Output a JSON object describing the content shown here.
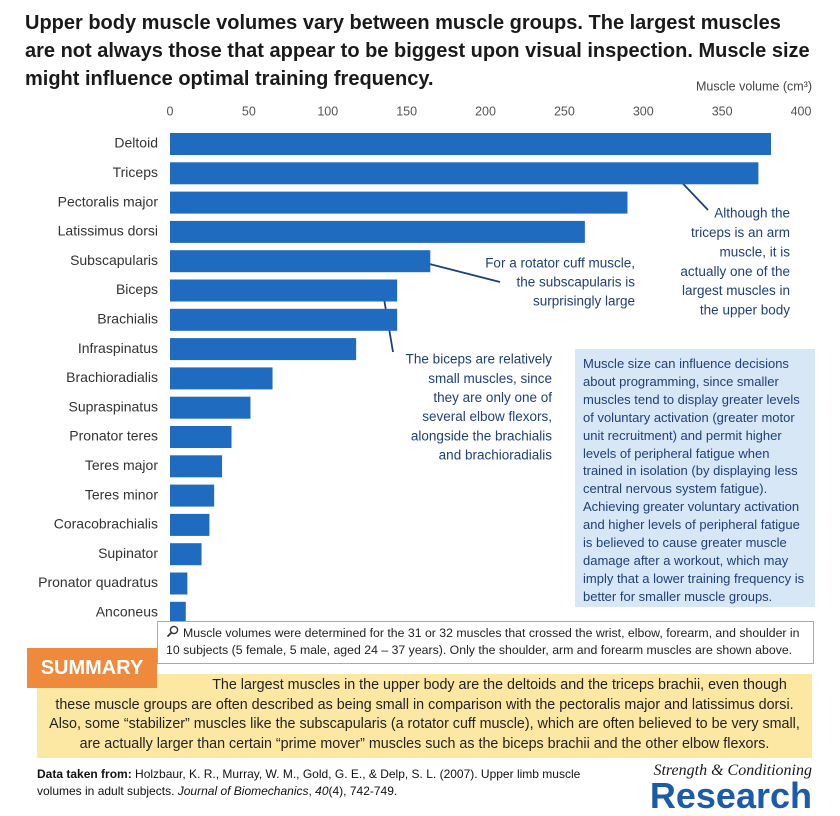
{
  "chart_data": {
    "type": "bar",
    "title": "Upper body muscle volumes vary between muscle groups. The largest muscles are not always those that appear to be biggest upon visual inspection. Muscle size might influence optimal training frequency.",
    "xlabel": "Muscle volume (cm³)",
    "categories": [
      "Deltoid",
      "Triceps",
      "Pectoralis major",
      "Latissimus dorsi",
      "Subscapularis",
      "Biceps",
      "Brachialis",
      "Infraspinatus",
      "Brachioradialis",
      "Supraspinatus",
      "Pronator teres",
      "Teres major",
      "Teres minor",
      "Coracobrachialis",
      "Supinator",
      "Pronator quadratus",
      "Anconeus"
    ],
    "values": [
      381,
      373,
      290,
      263,
      165,
      144,
      144,
      118,
      65,
      51,
      39,
      33,
      28,
      25,
      20,
      11,
      10
    ],
    "color": "#1f6bc0",
    "xlim": [
      0,
      400
    ],
    "xticks": [
      0,
      50,
      100,
      150,
      200,
      250,
      300,
      350,
      400
    ],
    "annotations": [
      {
        "lines": [
          "Although the",
          "triceps is an arm",
          "muscle, it is",
          "actually one of the",
          "largest muscles in",
          "the upper body"
        ]
      },
      {
        "lines": [
          "For a rotator cuff muscle,",
          "the subscapularis is",
          "surprisingly large"
        ]
      },
      {
        "lines": [
          "The biceps are relatively",
          "small muscles, since",
          "they are only one of",
          "several elbow flexors,",
          "alongside the brachialis",
          "and brachioradialis"
        ]
      }
    ]
  },
  "info_box": {
    "text": "Muscle size can influence decisions about programming, since smaller muscles tend to display greater levels of voluntary activation (greater motor unit recruitment) and permit higher levels of peripheral fatigue when trained in isolation (by displaying less central nervous system fatigue). Achieving greater voluntary activation and higher levels of peripheral fatigue is believed to cause greater muscle damage after a workout, which may imply that a lower training frequency is better for smaller muscle groups."
  },
  "note": {
    "text": "Muscle volumes were determined for the 31 or 32 muscles that crossed the wrist, elbow, forearm, and shoulder in 10 subjects (5 female, 5 male, aged 24 – 37 years). Only the shoulder, arm and forearm muscles are shown above."
  },
  "summary": {
    "heading": "SUMMARY",
    "text": "The largest muscles in the upper body are the deltoids and the triceps brachii, even though these muscle groups are often described as being small in comparison with the pectoralis major and latissimus dorsi. Also, some “stabilizer” muscles like the subscapularis (a rotator cuff muscle), which are often believed to be very small, are actually larger than certain “prime mover” muscles such as the biceps brachii and the other elbow flexors."
  },
  "source": {
    "label": "Data taken from:",
    "text": "Holzbaur, K. R., Murray, W. M., Gold, G. E., & Delp, S. L. (2007). Upper limb muscle volumes in adult subjects.",
    "journal": "Journal of Biomechanics",
    "volume": "40",
    "pages": "(4), 742-749."
  },
  "logo": {
    "tagline": "Strength & Conditioning",
    "name": "Research"
  }
}
